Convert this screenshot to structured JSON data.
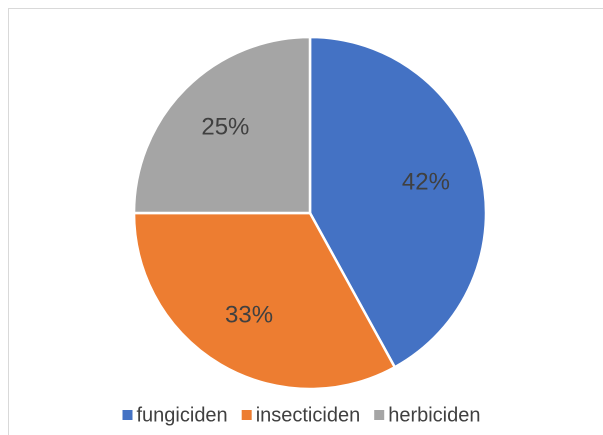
{
  "chart_data": {
    "type": "pie",
    "categories": [
      "fungiciden",
      "insecticiden",
      "herbiciden"
    ],
    "values": [
      42,
      33,
      25
    ],
    "value_labels": [
      "42%",
      "33%",
      "25%"
    ],
    "colors": [
      "#4472c4",
      "#ed7d31",
      "#a5a5a5"
    ],
    "legend": "bottom"
  }
}
